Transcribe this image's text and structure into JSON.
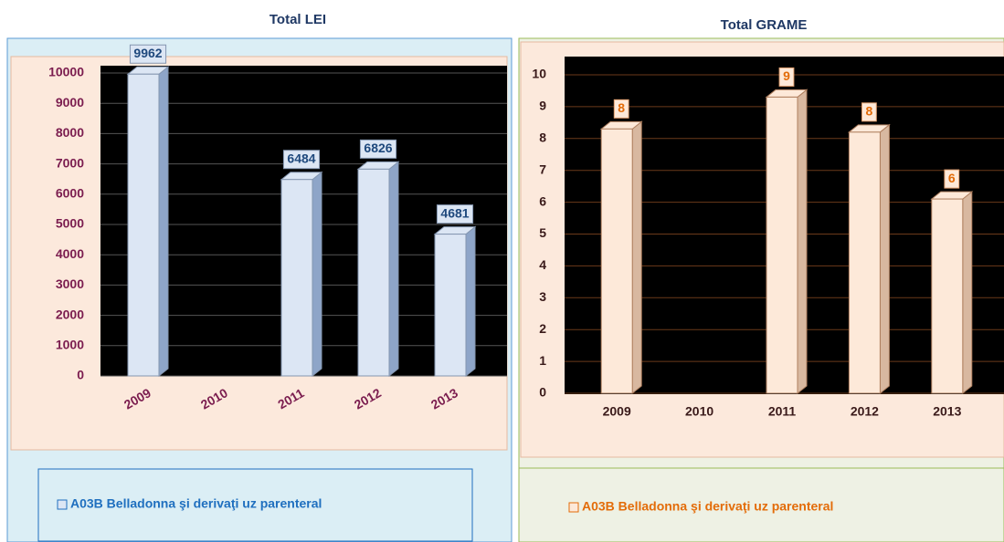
{
  "chart_data": [
    {
      "type": "bar",
      "title": "Total LEI",
      "categories": [
        "2009",
        "2010",
        "2011",
        "2012",
        "2013"
      ],
      "series": [
        {
          "name": "A03B Belladonna şi derivaţi uz parenteral",
          "color": "#dce6f4",
          "values": [
            9962,
            null,
            6484,
            6826,
            4681
          ]
        }
      ],
      "ylim": [
        0,
        10000
      ],
      "yticks": [
        0,
        1000,
        2000,
        3000,
        4000,
        5000,
        6000,
        7000,
        8000,
        9000,
        10000
      ],
      "grid": true
    },
    {
      "type": "bar",
      "title": "Total GRAME",
      "categories": [
        "2009",
        "2010",
        "2011",
        "2012",
        "2013"
      ],
      "series": [
        {
          "name": "A03B Belladonna şi derivaţi uz parenteral",
          "color": "#fde9d9",
          "values": [
            8.3,
            null,
            9.3,
            8.2,
            6.1
          ],
          "value_labels": [
            "8",
            null,
            "9",
            "8",
            "6"
          ]
        }
      ],
      "ylim": [
        0,
        10
      ],
      "yticks": [
        0,
        1,
        2,
        3,
        4,
        5,
        6,
        7,
        8,
        9,
        10
      ],
      "grid": true
    }
  ]
}
